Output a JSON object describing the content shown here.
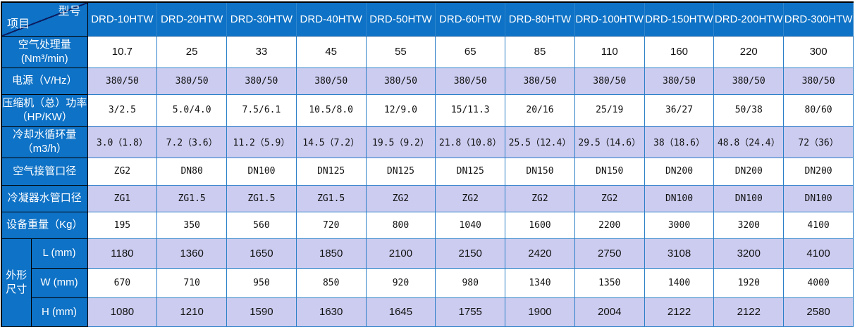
{
  "table": {
    "corner": {
      "top_label": "型号",
      "bottom_label": "项目"
    },
    "columns": [
      "DRD-10HTW",
      "DRD-20HTW",
      "DRD-30HTW",
      "DRD-40HTW",
      "DRD-50HTW",
      "DRD-60HTW",
      "DRD-80HTW",
      "DRD-100HTW",
      "DRD-150HTW",
      "DRD-200HTW",
      "DRD-300HTW"
    ],
    "rows": [
      {
        "label_lines": [
          "空气处理量",
          "(Nm³/min)"
        ],
        "values": [
          "10.7",
          "25",
          "33",
          "45",
          "55",
          "65",
          "85",
          "110",
          "160",
          "220",
          "300"
        ]
      },
      {
        "label_lines": [
          "电源（V/Hz）"
        ],
        "values": [
          "380/50",
          "380/50",
          "380/50",
          "380/50",
          "380/50",
          "380/50",
          "380/50",
          "380/50",
          "380/50",
          "380/50",
          "380/50"
        ]
      },
      {
        "label_lines": [
          "压缩机（总）功率",
          "（HP/KW）"
        ],
        "values": [
          "3/2.5",
          "5.0/4.0",
          "7.5/6.1",
          "10.5/8.0",
          "12/9.0",
          "15/11.3",
          "20/16",
          "25/19",
          "36/27",
          "50/38",
          "80/60"
        ]
      },
      {
        "label_lines": [
          "冷却水循环量",
          "（m3/h）"
        ],
        "values": [
          "3.0（1.8）",
          "7.2（3.6）",
          "11.2（5.9）",
          "14.5（7.2）",
          "19.5（9.2）",
          "21.8（10.8）",
          "25.5（12.4）",
          "29.5（14.6）",
          "38（18.6）",
          "48.8（24.4）",
          "72（36）"
        ]
      },
      {
        "label_lines": [
          "空气接管口径"
        ],
        "values": [
          "ZG2",
          "DN80",
          "DN100",
          "DN125",
          "DN125",
          "DN125",
          "DN150",
          "DN150",
          "DN200",
          "DN200",
          "DN200"
        ]
      },
      {
        "label_lines": [
          "冷凝器水管口径"
        ],
        "values": [
          "ZG1",
          "ZG1.5",
          "ZG1.5",
          "ZG1.5",
          "ZG2",
          "ZG2",
          "ZG2",
          "ZG2",
          "DN100",
          "DN100",
          "DN100"
        ]
      },
      {
        "label_lines": [
          "设备重量（Kg）"
        ],
        "values": [
          "195",
          "350",
          "560",
          "720",
          "800",
          "1040",
          "1600",
          "2200",
          "3000",
          "3200",
          "4100"
        ]
      }
    ],
    "size_group": {
      "label_lines": [
        "外形",
        "尺寸"
      ],
      "rows": [
        {
          "sub_label": "L (mm)",
          "values": [
            "1180",
            "1360",
            "1650",
            "1850",
            "2100",
            "2150",
            "2420",
            "2750",
            "3108",
            "3200",
            "4100"
          ]
        },
        {
          "sub_label": "W (mm)",
          "values": [
            "670",
            "710",
            "950",
            "850",
            "920",
            "980",
            "1340",
            "1350",
            "1400",
            "1920",
            "4000"
          ]
        },
        {
          "sub_label": "H (mm)",
          "values": [
            "1080",
            "1210",
            "1590",
            "1630",
            "1645",
            "1755",
            "1900",
            "2004",
            "2122",
            "2122",
            "2580"
          ]
        }
      ]
    },
    "colors": {
      "header_blue": "#0e72c6",
      "row_alt_lavender": "#ccccf0",
      "grid_blue": "#2b7fc8",
      "label_border_black": "#000000",
      "row_white": "#ffffff"
    }
  }
}
